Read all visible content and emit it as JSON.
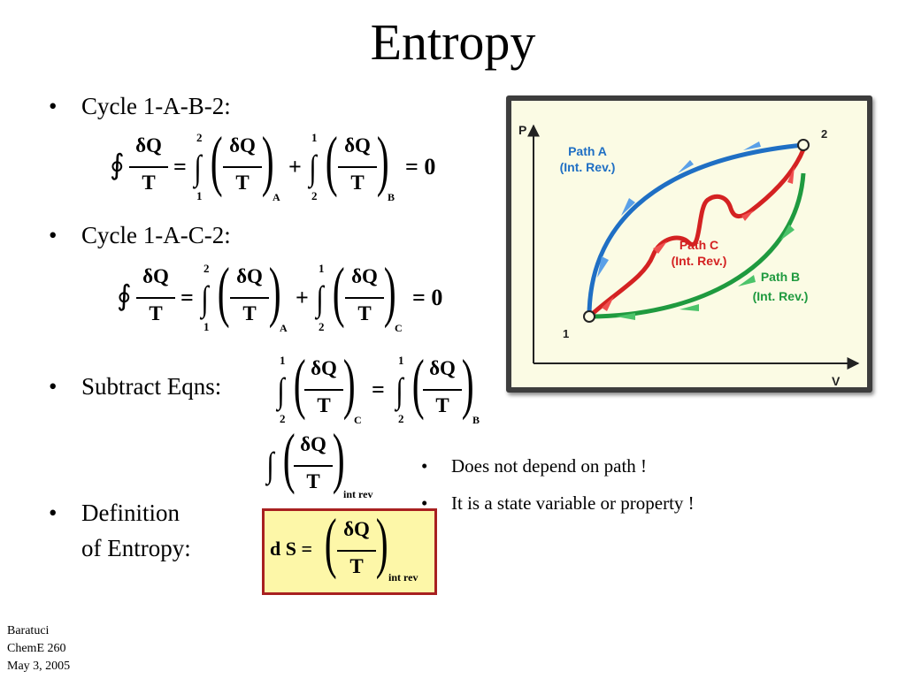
{
  "title": "Entropy",
  "bullets": {
    "b1": "Cycle 1-A-B-2:",
    "b2": "Cycle 1-A-C-2:",
    "b3": "Subtract Eqns:",
    "b4_line1": "Definition",
    "b4_line2": "of Entropy:"
  },
  "math": {
    "num": "δQ",
    "den": "T",
    "eq": "=",
    "plus": "+",
    "zero": "= 0",
    "one": "1",
    "two": "2",
    "A": "A",
    "B": "B",
    "C": "C",
    "int_rev": "int rev",
    "dS": "d S ="
  },
  "notes": {
    "n1": "Does not depend on path !",
    "n2": "It is a state variable or property !"
  },
  "footer": {
    "line1": "Baratuci",
    "line2": "ChemE 260",
    "line3": "May 3, 2005"
  },
  "diagram": {
    "p_axis": "P",
    "v_axis": "V",
    "point1": "1",
    "point2": "2",
    "pathA_1": "Path A",
    "pathA_2": "(Int. Rev.)",
    "pathB_1": "Path B",
    "pathB_2": "(Int. Rev.)",
    "pathC_1": "Path C",
    "pathC_2": "(Int. Rev.)",
    "colors": {
      "pathA": "#1f6fc4",
      "pathB": "#1f9a3f",
      "pathC": "#d42222",
      "background": "#fbfbe4",
      "frame": "#3d3d3d",
      "box_fill": "#fdf7a8",
      "box_border": "#a82020"
    }
  }
}
